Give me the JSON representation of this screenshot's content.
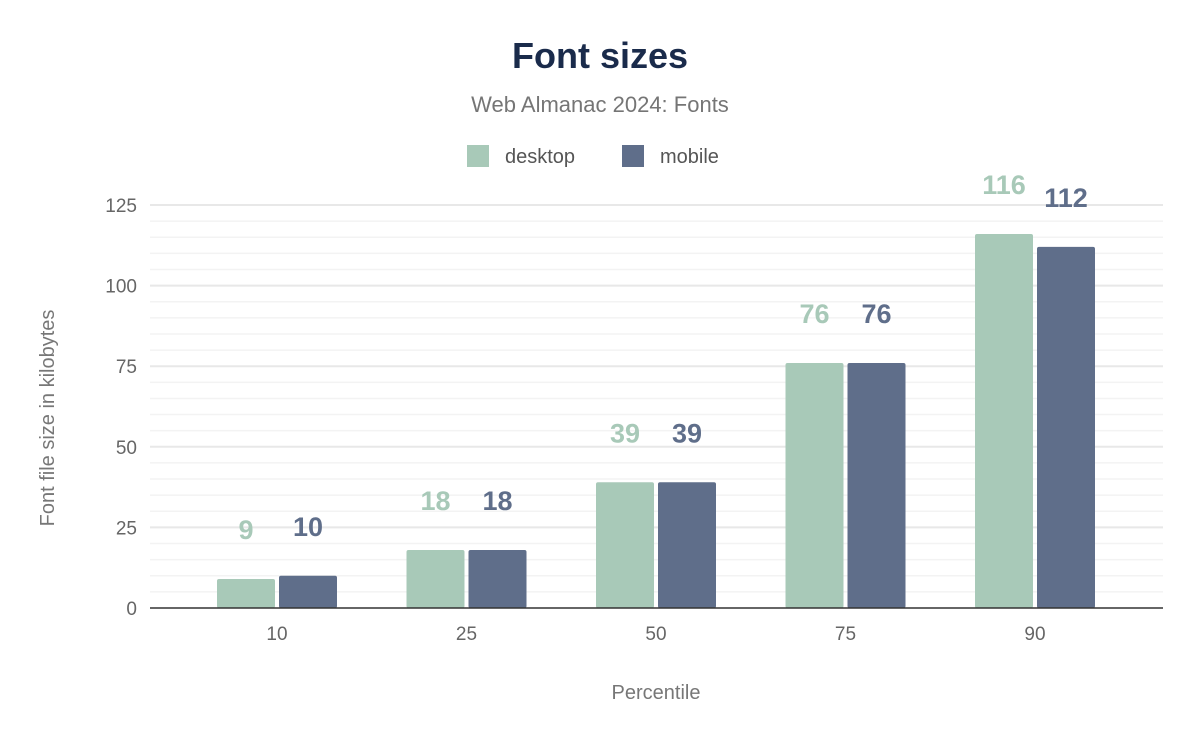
{
  "chart_data": {
    "type": "bar",
    "title": "Font sizes",
    "subtitle": "Web Almanac 2024: Fonts",
    "xlabel": "Percentile",
    "ylabel": "Font file size in kilobytes",
    "categories": [
      "10",
      "25",
      "50",
      "75",
      "90"
    ],
    "series": [
      {
        "name": "desktop",
        "values": [
          9,
          18,
          39,
          76,
          116
        ],
        "color": "#a8c9b8"
      },
      {
        "name": "mobile",
        "values": [
          10,
          18,
          39,
          76,
          112
        ],
        "color": "#5f6e8a"
      }
    ],
    "ylim": [
      0,
      125
    ],
    "yticks": [
      "0",
      "25",
      "50",
      "75",
      "100",
      "125"
    ],
    "grid": true,
    "legend": "top-center",
    "title_color": "#1a2b4b"
  }
}
